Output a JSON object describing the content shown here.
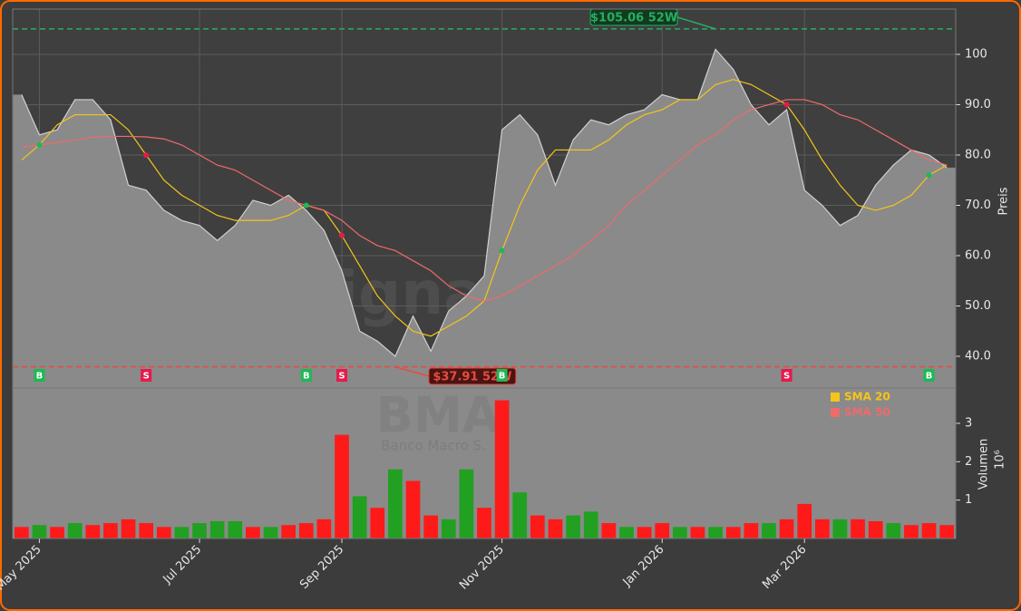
{
  "chart_data": {
    "type": "area",
    "watermark": "forexsignale.trade",
    "symbol": "BMA",
    "company": "Banco Macro S.",
    "y_label": "Preis",
    "categories": [
      null,
      "May 2025",
      null,
      null,
      null,
      null,
      null,
      null,
      null,
      null,
      "Jul 2025",
      null,
      null,
      null,
      null,
      null,
      null,
      null,
      "Sep 2025",
      null,
      null,
      null,
      null,
      null,
      null,
      null,
      null,
      "Nov 2025",
      null,
      null,
      null,
      null,
      null,
      null,
      null,
      null,
      "Jan 2026",
      null,
      null,
      null,
      null,
      null,
      null,
      null,
      "Mar 2026",
      null,
      null,
      null,
      null,
      null,
      null,
      null,
      null
    ],
    "values": [
      92,
      84,
      85,
      91,
      91,
      87,
      74,
      73,
      69,
      67,
      66,
      63,
      66,
      71,
      70,
      72,
      69,
      65,
      57,
      45,
      43,
      40,
      48,
      41,
      49,
      52,
      56,
      85,
      88,
      84,
      74,
      83,
      87,
      86,
      88,
      89,
      92,
      91,
      91,
      101,
      97,
      90,
      86,
      89,
      73,
      70,
      66,
      68,
      74,
      78,
      81,
      80,
      77.5
    ],
    "color": "#8a8a8a",
    "series": [
      {
        "name": "SMA 20",
        "color": "#f5c518",
        "values": [
          79,
          82,
          86,
          88,
          88,
          88,
          85,
          80,
          75,
          72,
          70,
          68,
          67,
          67,
          67,
          68,
          70,
          69,
          64,
          58,
          52,
          48,
          45,
          44,
          46,
          48,
          51,
          61,
          70,
          77,
          81,
          81,
          81,
          83,
          86,
          88,
          89,
          91,
          91,
          94,
          95,
          94,
          92,
          90,
          85,
          79,
          74,
          70,
          69,
          70,
          72,
          76,
          78
        ]
      },
      {
        "name": "SMA 50",
        "color": "#f06a6a",
        "values": [
          81.6,
          82,
          82.5,
          83,
          83.5,
          83.7,
          83.7,
          83.6,
          83.2,
          82,
          80,
          78,
          77,
          75,
          73,
          71,
          70,
          69,
          67,
          64,
          62,
          61,
          59,
          57,
          54,
          52,
          51,
          52,
          54,
          56,
          58,
          60,
          63,
          66,
          70,
          73,
          76,
          79,
          82,
          84,
          87,
          89,
          90,
          91,
          91,
          90,
          88,
          87,
          85,
          83,
          81,
          79,
          78
        ]
      }
    ],
    "signals": [
      null,
      "B",
      null,
      null,
      null,
      null,
      null,
      "S",
      null,
      null,
      null,
      null,
      null,
      null,
      null,
      null,
      "B",
      null,
      "S",
      null,
      null,
      null,
      null,
      null,
      null,
      null,
      null,
      "B",
      null,
      null,
      null,
      null,
      null,
      null,
      null,
      null,
      null,
      null,
      null,
      null,
      null,
      null,
      null,
      "S",
      null,
      null,
      null,
      null,
      null,
      null,
      null,
      "B",
      null
    ],
    "high": {
      "value": 105.06,
      "label": "$105.06 52W",
      "color": "#27ae60"
    },
    "low": {
      "value": 37.91,
      "label": "$37.91 52W",
      "color": "#e74c3c"
    },
    "ylim": [
      33.7,
      109
    ],
    "yticks": [
      {
        "value": 40,
        "label": "40.0"
      },
      {
        "value": 50,
        "label": "50.0"
      },
      {
        "value": 60,
        "label": "60.0"
      },
      {
        "value": 70,
        "label": "70.0"
      },
      {
        "value": 80,
        "label": "80.0"
      },
      {
        "value": 90,
        "label": "90.0"
      },
      100
    ],
    "grid": true,
    "volume": {
      "type": "bar",
      "y_label": "Volumen",
      "scale_label": "10⁶",
      "ylim": [
        0,
        3.92
      ],
      "yticks": [
        1,
        2,
        3
      ],
      "values": [
        0.3,
        0.35,
        0.3,
        0.4,
        0.35,
        0.4,
        0.5,
        0.4,
        0.3,
        0.3,
        0.4,
        0.45,
        0.45,
        0.3,
        0.3,
        0.35,
        0.4,
        0.5,
        2.7,
        1.1,
        0.8,
        1.8,
        1.5,
        0.6,
        0.5,
        1.8,
        0.8,
        3.6,
        1.2,
        0.6,
        0.5,
        0.6,
        0.7,
        0.4,
        0.3,
        0.3,
        0.4,
        0.3,
        0.3,
        0.3,
        0.3,
        0.4,
        0.4,
        0.5,
        0.9,
        0.5,
        0.5,
        0.5,
        0.45,
        0.4,
        0.35,
        0.4,
        0.35
      ],
      "colors": [
        "#ff1a1a",
        "#22a022",
        "#ff1a1a",
        "#22a022",
        "#ff1a1a",
        "#ff1a1a",
        "#ff1a1a",
        "#ff1a1a",
        "#ff1a1a",
        "#22a022",
        "#22a022",
        "#22a022",
        "#22a022",
        "#ff1a1a",
        "#22a022",
        "#ff1a1a",
        "#ff1a1a",
        "#ff1a1a",
        "#ff1a1a",
        "#22a022",
        "#ff1a1a",
        "#22a022",
        "#ff1a1a",
        "#ff1a1a",
        "#22a022",
        "#22a022",
        "#ff1a1a",
        "#ff1a1a",
        "#22a022",
        "#ff1a1a",
        "#ff1a1a",
        "#22a022",
        "#22a022",
        "#ff1a1a",
        "#22a022",
        "#ff1a1a",
        "#ff1a1a",
        "#22a022",
        "#ff1a1a",
        "#22a022",
        "#ff1a1a",
        "#ff1a1a",
        "#22a022",
        "#ff1a1a",
        "#ff1a1a",
        "#ff1a1a",
        "#22a022",
        "#ff1a1a",
        "#ff1a1a",
        "#22a022",
        "#ff1a1a",
        "#ff1a1a",
        "#ff1a1a"
      ]
    }
  }
}
